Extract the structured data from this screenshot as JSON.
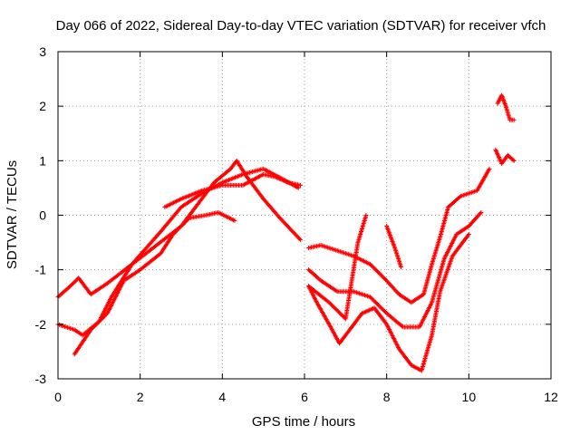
{
  "chart_data": {
    "type": "scatter",
    "title": "Day 066 of 2022, Sidereal Day-to-day VTEC variation (SDTVAR) for receiver vfch",
    "xlabel": "GPS time / hours",
    "ylabel": "SDTVAR / TECUs",
    "xlim": [
      0,
      12
    ],
    "ylim": [
      -3,
      3
    ],
    "x_ticks": [
      0,
      2,
      4,
      6,
      8,
      10,
      12
    ],
    "y_ticks": [
      -3,
      -2,
      -1,
      0,
      1,
      2,
      3
    ],
    "x_tick_labels": [
      "0",
      "2",
      "4",
      "6",
      "8",
      "10",
      "12"
    ],
    "y_tick_labels": [
      "-3",
      "-2",
      "-1",
      "0",
      "1",
      "2",
      "3"
    ],
    "grid": true,
    "marker": "+",
    "color": "#ff0000",
    "series": [
      {
        "x": [
          0.0,
          0.3,
          0.5,
          0.8,
          1.2,
          1.8,
          2.4,
          3.0,
          3.4,
          3.8,
          4.2,
          4.35,
          4.6,
          5.0,
          5.4,
          5.9
        ],
        "y": [
          -1.5,
          -1.3,
          -1.15,
          -1.45,
          -1.25,
          -0.9,
          -0.55,
          -0.2,
          0.2,
          0.6,
          0.85,
          1.0,
          0.7,
          0.3,
          -0.05,
          -0.45
        ]
      },
      {
        "x": [
          0.0,
          0.4,
          0.6,
          1.0,
          1.3,
          1.8,
          2.5,
          3.0,
          3.5,
          4.0,
          4.5,
          5.0,
          5.5,
          5.85
        ],
        "y": [
          -2.0,
          -2.1,
          -2.2,
          -1.95,
          -1.5,
          -0.9,
          -0.3,
          0.15,
          0.4,
          0.6,
          0.75,
          0.85,
          0.65,
          0.5
        ]
      },
      {
        "x": [
          0.4,
          0.8,
          1.2,
          1.6,
          2.0,
          2.5,
          2.8,
          3.2,
          3.6,
          3.9,
          4.3
        ],
        "y": [
          -2.55,
          -2.1,
          -1.8,
          -1.2,
          -1.0,
          -0.7,
          -0.35,
          -0.05,
          0.0,
          0.05,
          -0.1
        ]
      },
      {
        "x": [
          2.6,
          3.0,
          3.5,
          4.0,
          4.5,
          5.0,
          5.3,
          5.6,
          5.9
        ],
        "y": [
          0.15,
          0.3,
          0.45,
          0.55,
          0.55,
          0.75,
          0.7,
          0.6,
          0.55
        ]
      },
      {
        "x": [
          6.1,
          6.4,
          6.8,
          7.2,
          7.6,
          8.0,
          8.3,
          8.6,
          8.9,
          9.1,
          9.3,
          9.5,
          9.8,
          10.2,
          10.5
        ],
        "y": [
          -0.6,
          -0.55,
          -0.65,
          -0.75,
          -0.9,
          -1.2,
          -1.45,
          -1.6,
          -1.45,
          -0.9,
          -0.4,
          0.15,
          0.35,
          0.45,
          0.85
        ]
      },
      {
        "x": [
          6.1,
          6.4,
          6.8,
          7.2,
          7.6,
          8.0,
          8.4,
          8.8,
          9.1,
          9.4,
          9.7,
          10.0,
          10.3
        ],
        "y": [
          -1.0,
          -1.2,
          -1.4,
          -1.4,
          -1.5,
          -1.8,
          -2.05,
          -2.05,
          -1.6,
          -0.8,
          -0.35,
          -0.2,
          0.05
        ]
      },
      {
        "x": [
          6.1,
          6.3,
          6.6,
          6.85,
          7.1,
          7.4,
          7.7,
          8.0,
          8.3,
          8.6,
          8.85,
          9.1,
          9.3,
          9.6,
          10.0
        ],
        "y": [
          -1.3,
          -1.6,
          -2.0,
          -2.35,
          -2.1,
          -1.8,
          -1.7,
          -2.0,
          -2.45,
          -2.75,
          -2.85,
          -2.2,
          -1.4,
          -0.75,
          -0.35
        ]
      },
      {
        "x": [
          6.1,
          6.6,
          7.0,
          7.3,
          7.5
        ],
        "y": [
          -1.3,
          -1.6,
          -1.9,
          -0.5,
          0.0
        ]
      },
      {
        "x": [
          8.0,
          8.2,
          8.35
        ],
        "y": [
          -0.2,
          -0.6,
          -0.95
        ]
      },
      {
        "x": [
          10.7,
          10.8,
          10.9,
          11.0,
          11.1
        ],
        "y": [
          2.05,
          2.2,
          2.0,
          1.75,
          1.75
        ]
      },
      {
        "x": [
          10.65,
          10.8,
          10.95,
          11.1
        ],
        "y": [
          1.2,
          0.95,
          1.1,
          1.0
        ]
      }
    ]
  }
}
